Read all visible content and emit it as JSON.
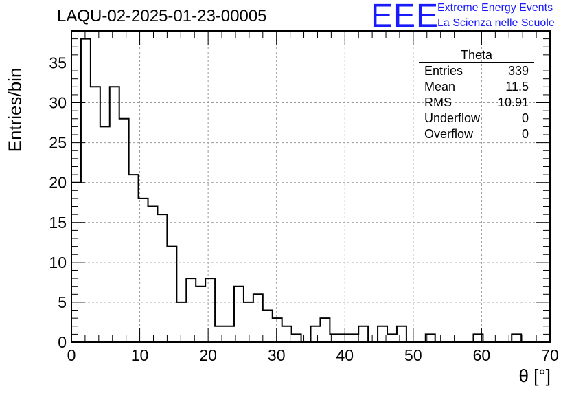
{
  "title": "LAQU-02-2025-01-23-00005",
  "logo": {
    "mark": "EEE",
    "line1": "Extreme Energy Events",
    "line2": "La Scienza nelle Scuole",
    "color": "#1a1aff"
  },
  "stats": {
    "name": "Theta",
    "rows": [
      {
        "label": "Entries",
        "value": "339"
      },
      {
        "label": "Mean",
        "value": "11.5"
      },
      {
        "label": "RMS",
        "value": "10.91"
      },
      {
        "label": "Underflow",
        "value": "0"
      },
      {
        "label": "Overflow",
        "value": "0"
      }
    ]
  },
  "chart_data": {
    "type": "bar",
    "style": "step-histogram",
    "xlabel": "θ [°]",
    "ylabel": "Entries/bin",
    "xlim": [
      0,
      70
    ],
    "ylim": [
      0,
      39
    ],
    "bin_edges": [
      0,
      1.4,
      2.8,
      4.2,
      5.6,
      7,
      8.4,
      9.8,
      11.2,
      12.6,
      14,
      15.4,
      16.8,
      18.2,
      19.6,
      21,
      22.4,
      23.8,
      25.2,
      26.6,
      28,
      29.4,
      30.8,
      32.2,
      33.6,
      35,
      36.4,
      37.8,
      39.2,
      40.6,
      42,
      43.4,
      44.8,
      46.2,
      47.6,
      49,
      50.4,
      51.8,
      53.2,
      54.6,
      56,
      57.4,
      58.8,
      60.2,
      61.6,
      63,
      64.4,
      65.8,
      67.2,
      68.6,
      70
    ],
    "values": [
      20,
      38,
      32,
      27,
      32,
      28,
      21,
      18,
      17,
      16,
      12,
      5,
      8,
      7,
      8,
      2,
      2,
      7,
      5,
      6,
      4,
      3,
      2,
      1,
      0,
      2,
      3,
      1,
      1,
      1,
      2,
      0,
      2,
      1,
      2,
      0,
      0,
      1,
      0,
      0,
      0,
      0,
      1,
      0,
      0,
      0,
      1,
      0,
      0,
      0
    ],
    "x_ticks": [
      0,
      10,
      20,
      30,
      40,
      50,
      60,
      70
    ],
    "y_ticks": [
      0,
      5,
      10,
      15,
      20,
      25,
      30,
      35
    ],
    "grid": true,
    "legend": "top-right"
  }
}
